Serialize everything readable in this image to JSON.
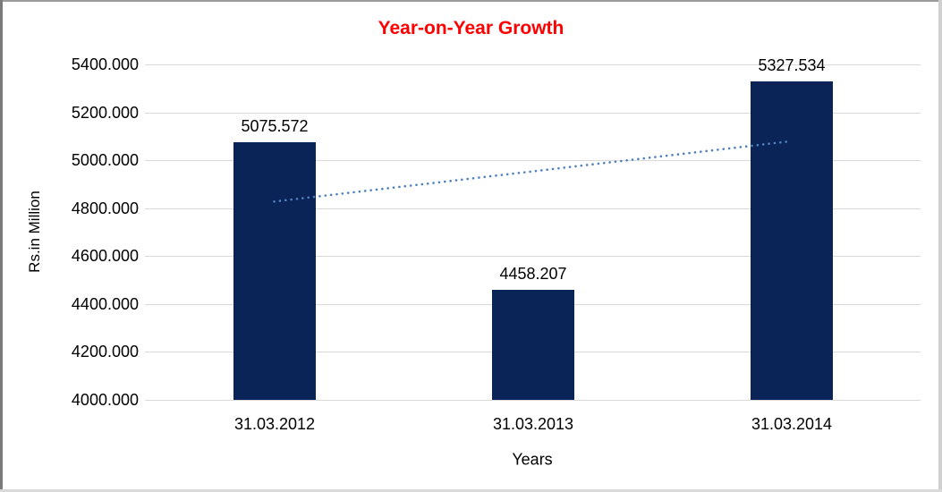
{
  "window": {
    "background": "#ffffff",
    "border_colors": {
      "top": "#9b9b9b",
      "left": "#7a7a7a",
      "right": "#d0d0d0",
      "bottom": "#d9d9d9"
    }
  },
  "chart_data": {
    "type": "bar",
    "title": "Year-on-Year Growth",
    "title_color": "#ff0000",
    "categories": [
      "31.03.2012",
      "31.03.2013",
      "31.03.2014"
    ],
    "values": [
      5075.572,
      4458.207,
      5327.534
    ],
    "value_labels": [
      "5075.572",
      "4458.207",
      "5327.534"
    ],
    "xlabel": "Years",
    "ylabel": "Rs.in Million",
    "ylim": [
      4000,
      5400
    ],
    "yticks": [
      4000,
      4200,
      4400,
      4600,
      4800,
      5000,
      5200,
      5400
    ],
    "ytick_labels": [
      "4000.000",
      "4200.000",
      "4400.000",
      "4600.000",
      "4800.000",
      "5000.000",
      "5200.000",
      "5400.000"
    ],
    "grid": true,
    "legend": false,
    "bar_color": "#0a2458",
    "gridline_color": "#d9d9d9",
    "text_color": "#000000",
    "trendline": {
      "type": "linear",
      "style": "dotted",
      "color": "#4f81bd",
      "start_value": 4827.8,
      "end_value": 5079.8
    }
  }
}
